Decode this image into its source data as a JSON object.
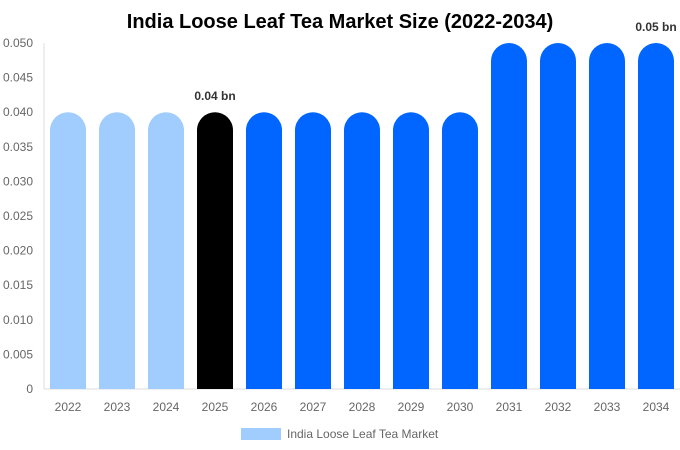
{
  "chart_data": {
    "type": "bar",
    "title": "India Loose Leaf Tea Market Size (2022-2034)",
    "categories": [
      "2022",
      "2023",
      "2024",
      "2025",
      "2026",
      "2027",
      "2028",
      "2029",
      "2030",
      "2031",
      "2032",
      "2033",
      "2034"
    ],
    "series": [
      {
        "name": "India Loose Leaf Tea Market",
        "values": [
          0.04,
          0.04,
          0.04,
          0.04,
          0.04,
          0.04,
          0.04,
          0.04,
          0.04,
          0.05,
          0.05,
          0.05,
          0.05
        ]
      }
    ],
    "bar_colors": [
      "#a0cdfd",
      "#a0cdfd",
      "#a0cdfd",
      "#000000",
      "#0066ff",
      "#0066ff",
      "#0066ff",
      "#0066ff",
      "#0066ff",
      "#0066ff",
      "#0066ff",
      "#0066ff",
      "#0066ff"
    ],
    "data_labels": [
      {
        "category": "2025",
        "text": "0.04 bn"
      },
      {
        "category": "2034",
        "text": "0.05 bn"
      }
    ],
    "yticks": [
      "0",
      "0.005",
      "0.010",
      "0.015",
      "0.020",
      "0.025",
      "0.030",
      "0.035",
      "0.040",
      "0.045",
      "0.050"
    ],
    "ylim": [
      0,
      0.05
    ],
    "xlabel": "",
    "ylabel": "",
    "grid": false,
    "legend": {
      "label": "India Loose Leaf Tea Market",
      "color": "#a0cdfd",
      "position": "bottom"
    }
  }
}
